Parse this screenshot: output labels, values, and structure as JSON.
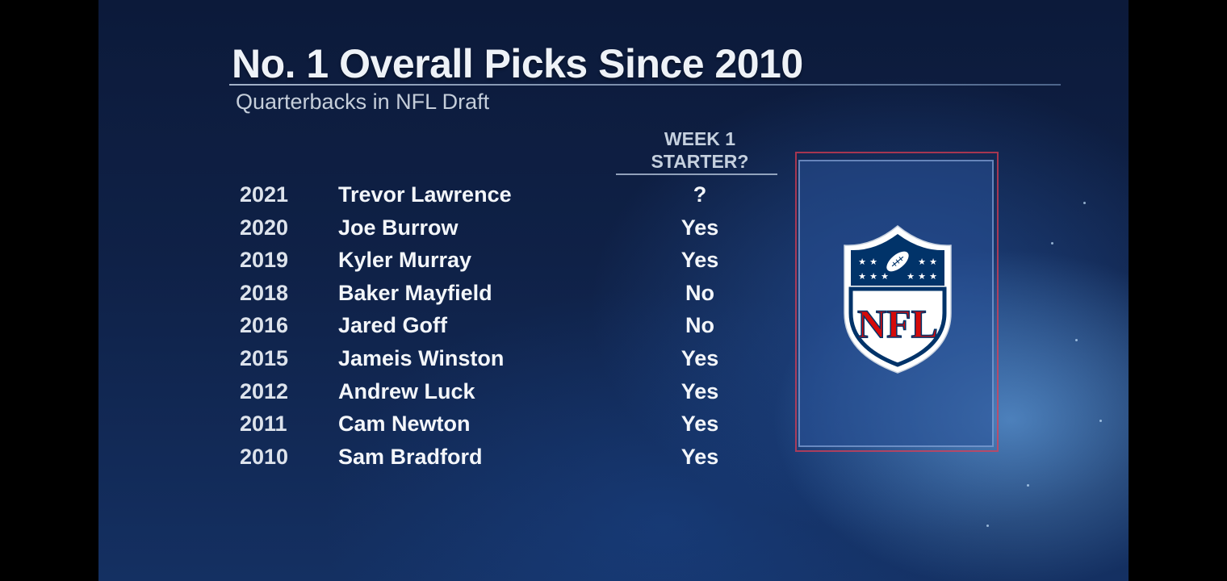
{
  "header": {
    "title": "No. 1 Overall Picks Since 2010",
    "subtitle": "Quarterbacks in NFL Draft"
  },
  "table": {
    "column_header_line1": "WEEK 1",
    "column_header_line2": "STARTER?",
    "rows": [
      {
        "year": "2021",
        "name": "Trevor Lawrence",
        "starter": "?"
      },
      {
        "year": "2020",
        "name": "Joe Burrow",
        "starter": "Yes"
      },
      {
        "year": "2019",
        "name": "Kyler Murray",
        "starter": "Yes"
      },
      {
        "year": "2018",
        "name": "Baker Mayfield",
        "starter": "No"
      },
      {
        "year": "2016",
        "name": "Jared Goff",
        "starter": "No"
      },
      {
        "year": "2015",
        "name": "Jameis Winston",
        "starter": "Yes"
      },
      {
        "year": "2012",
        "name": "Andrew Luck",
        "starter": "Yes"
      },
      {
        "year": "2011",
        "name": "Cam Newton",
        "starter": "Yes"
      },
      {
        "year": "2010",
        "name": "Sam Bradford",
        "starter": "Yes"
      }
    ]
  },
  "logo": {
    "icon": "nfl-shield-logo",
    "text": "NFL",
    "colors": {
      "navy": "#013369",
      "red": "#D50A0A",
      "white": "#FFFFFF"
    }
  }
}
